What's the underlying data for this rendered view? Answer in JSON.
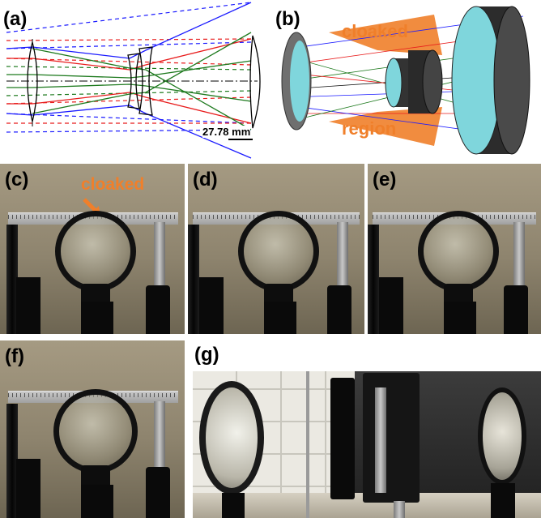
{
  "panels": {
    "a": {
      "label": "(a)",
      "scale_label": "27.78 mm"
    },
    "b": {
      "label": "(b)",
      "text_top": "cloaked",
      "text_bottom": "region"
    },
    "c": {
      "label": "(c)",
      "annotation": "cloaked"
    },
    "d": {
      "label": "(d)"
    },
    "e": {
      "label": "(e)"
    },
    "f": {
      "label": "(f)"
    },
    "g": {
      "label": "(g)"
    }
  },
  "colors": {
    "ray_blue": "#1a1aff",
    "ray_red": "#e81c1c",
    "ray_green": "#1e7a1e",
    "accent_orange": "#f07f2a",
    "lens_cyan": "#7fd6dc"
  }
}
